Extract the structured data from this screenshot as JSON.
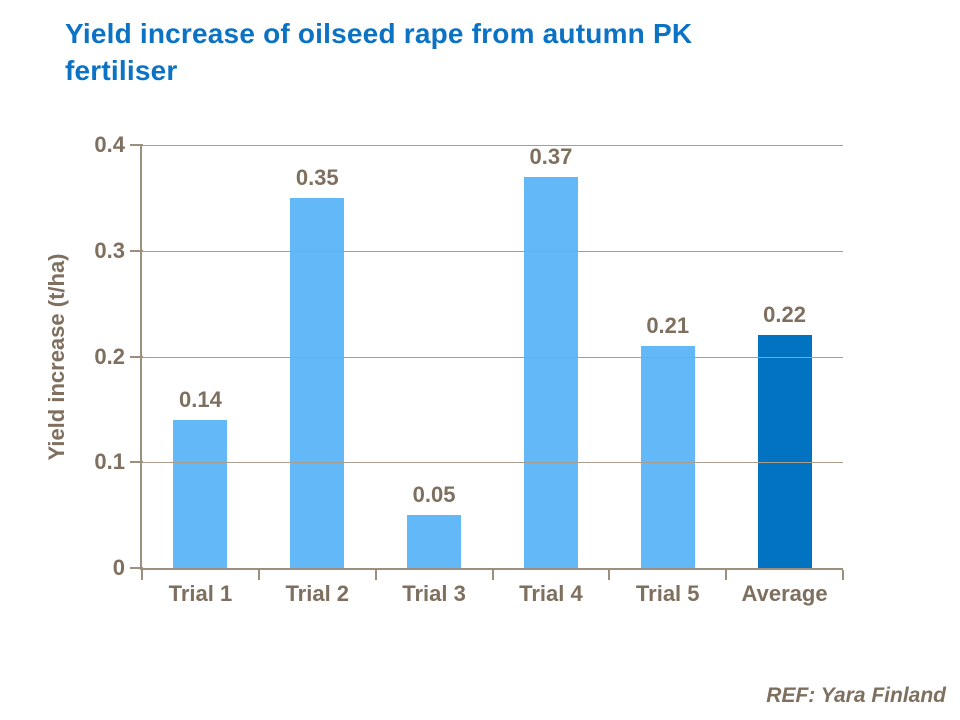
{
  "title": "Yield increase of oilseed rape from autumn PK fertiliser",
  "footer": {
    "ref": "REF: Yara Finland"
  },
  "colors": {
    "title_blue": "#0b72c4",
    "text_brown": "#7e6f5e",
    "gridline": "#a99d8d",
    "axis": "#9c8f7e",
    "bar_light_blue": "#63b8f7",
    "bar_dark_blue": "#0273c0",
    "background": "#ffffff"
  },
  "chart_data": {
    "type": "bar",
    "title": "Yield increase of oilseed rape from autumn PK fertiliser",
    "categories": [
      "Trial 1",
      "Trial 2",
      "Trial 3",
      "Trial 4",
      "Trial 5",
      "Average"
    ],
    "values": [
      0.14,
      0.35,
      0.05,
      0.37,
      0.21,
      0.22
    ],
    "data_labels": [
      "0.14",
      "0.35",
      "0.05",
      "0.37",
      "0.21",
      "0.22"
    ],
    "xlabel": "",
    "ylabel": "Yield increase (t/ha)",
    "ylim": [
      0,
      0.4
    ],
    "yticks": [
      0,
      0.1,
      0.2,
      0.3,
      0.4
    ],
    "ytick_labels": [
      "0",
      "0.1",
      "0.2",
      "0.3",
      "0.4"
    ],
    "grid": true,
    "legend": false,
    "bar_color": "#63b8f7",
    "highlight_category": "Average",
    "highlight_color": "#0273c0",
    "source_note": "REF: Yara Finland"
  }
}
